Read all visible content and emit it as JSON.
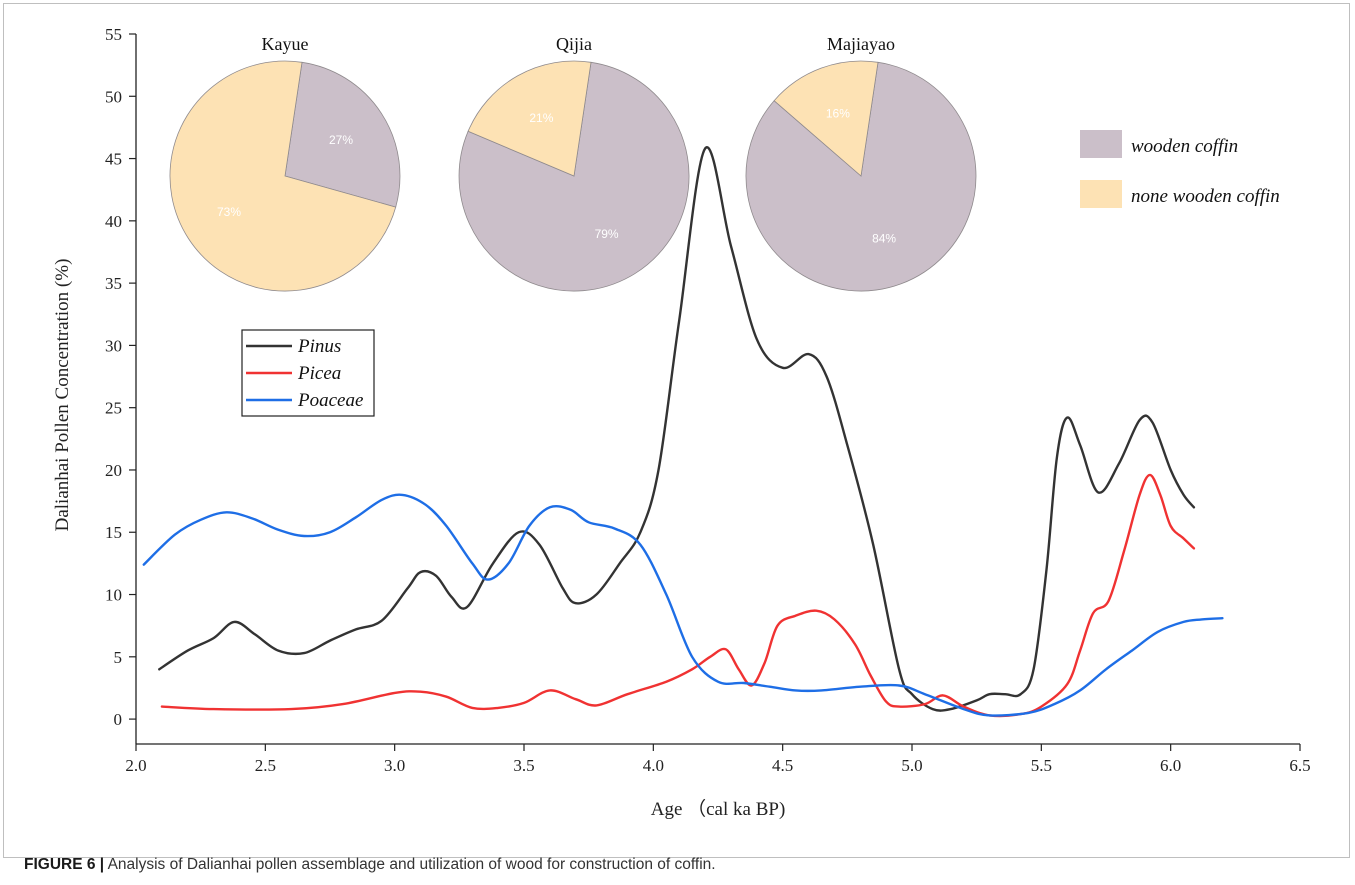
{
  "chart_data": [
    {
      "type": "line",
      "xlabel": "Age （cal ka BP)",
      "ylabel": "Dalianhai Pollen Concentration (%)",
      "xlim": [
        2.0,
        6.5
      ],
      "ylim": [
        -2,
        55
      ],
      "xticks": [
        "2.0",
        "2.5",
        "3.0",
        "3.5",
        "4.0",
        "4.5",
        "5.0",
        "5.5",
        "6.0",
        "6.5"
      ],
      "yticks": [
        "0",
        "5",
        "10",
        "15",
        "20",
        "25",
        "30",
        "35",
        "40",
        "45",
        "50",
        "55"
      ],
      "legend_position": "upper-left",
      "series": [
        {
          "name": "Pinus",
          "color": "#333333",
          "points": [
            [
              2.09,
              4.0
            ],
            [
              2.2,
              5.5
            ],
            [
              2.3,
              6.5
            ],
            [
              2.38,
              7.8
            ],
            [
              2.46,
              6.8
            ],
            [
              2.55,
              5.5
            ],
            [
              2.65,
              5.3
            ],
            [
              2.75,
              6.3
            ],
            [
              2.85,
              7.2
            ],
            [
              2.95,
              7.9
            ],
            [
              3.05,
              10.5
            ],
            [
              3.1,
              11.8
            ],
            [
              3.16,
              11.5
            ],
            [
              3.22,
              9.8
            ],
            [
              3.28,
              9.0
            ],
            [
              3.38,
              12.5
            ],
            [
              3.48,
              15.0
            ],
            [
              3.56,
              14.0
            ],
            [
              3.65,
              10.5
            ],
            [
              3.7,
              9.3
            ],
            [
              3.78,
              10.0
            ],
            [
              3.87,
              12.5
            ],
            [
              3.95,
              15.0
            ],
            [
              4.02,
              20.0
            ],
            [
              4.1,
              32.0
            ],
            [
              4.2,
              45.8
            ],
            [
              4.3,
              38.0
            ],
            [
              4.4,
              30.5
            ],
            [
              4.5,
              28.2
            ],
            [
              4.6,
              29.3
            ],
            [
              4.67,
              27.5
            ],
            [
              4.75,
              22.0
            ],
            [
              4.85,
              14.0
            ],
            [
              4.95,
              4.0
            ],
            [
              5.0,
              2.0
            ],
            [
              5.08,
              0.8
            ],
            [
              5.15,
              0.8
            ],
            [
              5.25,
              1.5
            ],
            [
              5.3,
              2.0
            ],
            [
              5.36,
              2.0
            ],
            [
              5.42,
              2.0
            ],
            [
              5.47,
              4.0
            ],
            [
              5.52,
              12.0
            ],
            [
              5.56,
              21.0
            ],
            [
              5.6,
              24.2
            ],
            [
              5.65,
              22.0
            ],
            [
              5.72,
              18.2
            ],
            [
              5.8,
              20.5
            ],
            [
              5.88,
              24.0
            ],
            [
              5.93,
              23.8
            ],
            [
              6.0,
              20.0
            ],
            [
              6.05,
              18.0
            ],
            [
              6.09,
              17.0
            ]
          ]
        },
        {
          "name": "Picea",
          "color": "#f03232",
          "points": [
            [
              2.1,
              1.0
            ],
            [
              2.3,
              0.8
            ],
            [
              2.6,
              0.8
            ],
            [
              2.8,
              1.2
            ],
            [
              3.0,
              2.1
            ],
            [
              3.1,
              2.2
            ],
            [
              3.2,
              1.8
            ],
            [
              3.3,
              0.9
            ],
            [
              3.4,
              0.9
            ],
            [
              3.5,
              1.3
            ],
            [
              3.6,
              2.3
            ],
            [
              3.7,
              1.6
            ],
            [
              3.78,
              1.1
            ],
            [
              3.9,
              2.0
            ],
            [
              4.05,
              3.0
            ],
            [
              4.15,
              4.0
            ],
            [
              4.22,
              5.0
            ],
            [
              4.28,
              5.6
            ],
            [
              4.33,
              4.0
            ],
            [
              4.38,
              2.7
            ],
            [
              4.43,
              4.5
            ],
            [
              4.48,
              7.5
            ],
            [
              4.55,
              8.3
            ],
            [
              4.63,
              8.7
            ],
            [
              4.7,
              8.0
            ],
            [
              4.78,
              6.0
            ],
            [
              4.84,
              3.5
            ],
            [
              4.9,
              1.4
            ],
            [
              4.95,
              1.0
            ],
            [
              5.05,
              1.2
            ],
            [
              5.12,
              1.9
            ],
            [
              5.2,
              1.0
            ],
            [
              5.3,
              0.3
            ],
            [
              5.42,
              0.4
            ],
            [
              5.5,
              1.0
            ],
            [
              5.6,
              2.8
            ],
            [
              5.65,
              5.5
            ],
            [
              5.7,
              8.5
            ],
            [
              5.76,
              9.5
            ],
            [
              5.82,
              13.5
            ],
            [
              5.88,
              18.0
            ],
            [
              5.92,
              19.6
            ],
            [
              5.96,
              18.0
            ],
            [
              6.0,
              15.5
            ],
            [
              6.05,
              14.5
            ],
            [
              6.09,
              13.7
            ]
          ]
        },
        {
          "name": "Poaceae",
          "color": "#1e6ee6",
          "points": [
            [
              2.03,
              12.4
            ],
            [
              2.15,
              14.8
            ],
            [
              2.25,
              16.0
            ],
            [
              2.35,
              16.6
            ],
            [
              2.45,
              16.1
            ],
            [
              2.55,
              15.2
            ],
            [
              2.65,
              14.7
            ],
            [
              2.75,
              15.0
            ],
            [
              2.85,
              16.2
            ],
            [
              2.95,
              17.6
            ],
            [
              3.03,
              18.0
            ],
            [
              3.12,
              17.2
            ],
            [
              3.2,
              15.5
            ],
            [
              3.3,
              12.5
            ],
            [
              3.36,
              11.2
            ],
            [
              3.44,
              12.5
            ],
            [
              3.52,
              15.5
            ],
            [
              3.6,
              17.0
            ],
            [
              3.68,
              16.8
            ],
            [
              3.75,
              15.8
            ],
            [
              3.85,
              15.3
            ],
            [
              3.95,
              14.0
            ],
            [
              4.05,
              10.0
            ],
            [
              4.15,
              5.0
            ],
            [
              4.25,
              3.0
            ],
            [
              4.35,
              2.9
            ],
            [
              4.45,
              2.6
            ],
            [
              4.55,
              2.3
            ],
            [
              4.65,
              2.3
            ],
            [
              4.8,
              2.6
            ],
            [
              4.95,
              2.7
            ],
            [
              5.05,
              2.0
            ],
            [
              5.2,
              0.8
            ],
            [
              5.3,
              0.3
            ],
            [
              5.45,
              0.5
            ],
            [
              5.55,
              1.2
            ],
            [
              5.65,
              2.3
            ],
            [
              5.75,
              4.0
            ],
            [
              5.85,
              5.5
            ],
            [
              5.95,
              7.0
            ],
            [
              6.05,
              7.8
            ],
            [
              6.12,
              8.0
            ],
            [
              6.2,
              8.1
            ]
          ]
        }
      ]
    },
    {
      "type": "pie",
      "title": "Kayue",
      "slices": [
        {
          "label": "wooden coffin",
          "value": 27,
          "text": "27%",
          "color": "#cbbfc9"
        },
        {
          "label": "none wooden coffin",
          "value": 73,
          "text": "73%",
          "color": "#fde2b4"
        }
      ]
    },
    {
      "type": "pie",
      "title": "Qijia",
      "slices": [
        {
          "label": "wooden coffin",
          "value": 79,
          "text": "79%",
          "color": "#cbbfc9"
        },
        {
          "label": "none wooden coffin",
          "value": 21,
          "text": "21%",
          "color": "#fde2b4"
        }
      ]
    },
    {
      "type": "pie",
      "title": "Majiayao",
      "slices": [
        {
          "label": "wooden coffin",
          "value": 84,
          "text": "84%",
          "color": "#cbbfc9"
        },
        {
          "label": "none wooden coffin",
          "value": 16,
          "text": "16%",
          "color": "#fde2b4"
        }
      ]
    }
  ],
  "pie_legend": [
    {
      "label": "wooden coffin",
      "color": "#cbbfc9"
    },
    {
      "label": "none wooden coffin",
      "color": "#fde2b4"
    }
  ],
  "caption": {
    "label": "FIGURE 6 |",
    "text": " Analysis of Dalianhai pollen assemblage and utilization of wood for construction of coffin."
  }
}
